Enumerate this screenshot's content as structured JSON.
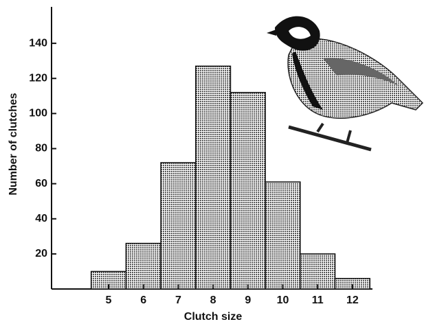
{
  "chart_data": {
    "type": "bar",
    "x_label": "Clutch size",
    "y_label": "Number of clutches",
    "categories": [
      "5",
      "6",
      "7",
      "8",
      "9",
      "10",
      "11",
      "12"
    ],
    "values": [
      10,
      26,
      72,
      127,
      112,
      61,
      20,
      6
    ],
    "color": "#9a9a9a",
    "ylim": [
      0,
      160
    ],
    "yticks": [
      20,
      40,
      60,
      80,
      100,
      120,
      140
    ]
  }
}
